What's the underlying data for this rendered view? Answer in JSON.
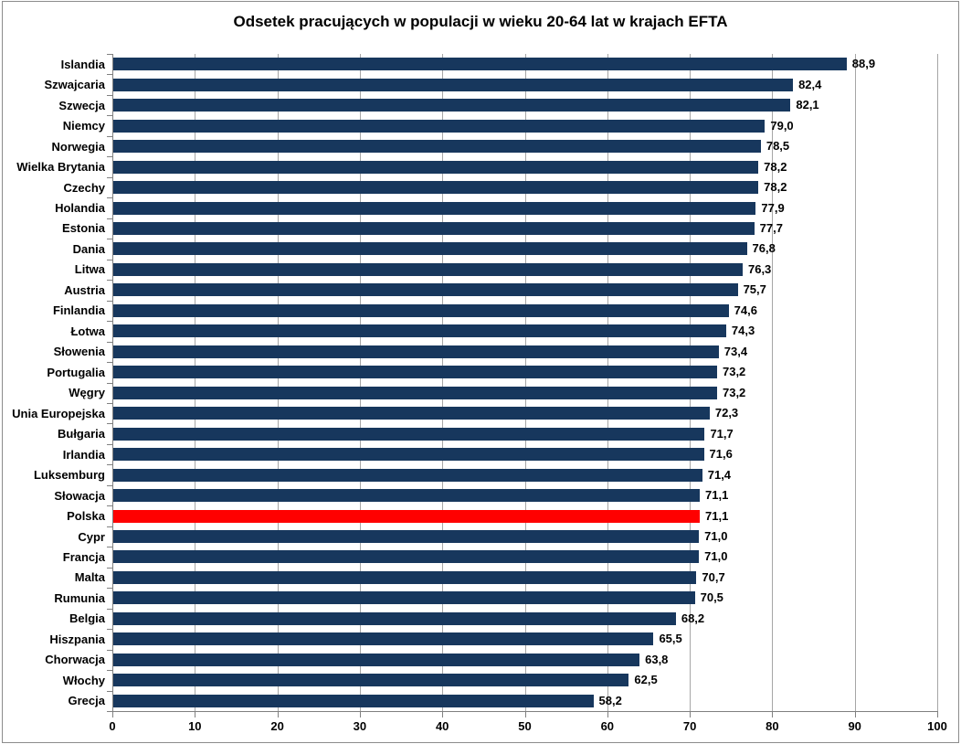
{
  "colors": {
    "bar": "#17375D",
    "highlight_bar": "#FF0000",
    "gridline": "#A6A6A6",
    "axis": "#808080",
    "text": "#000000",
    "frame_border": "#8C8C8C",
    "background": "#FFFFFF"
  },
  "chart_data": {
    "type": "bar",
    "orientation": "horizontal",
    "title": "Odsetek pracujących w populacji w wieku 20-64 lat w krajach EFTA",
    "xlabel": "",
    "ylabel": "",
    "xlim": [
      0,
      100
    ],
    "x_ticks": [
      0,
      10,
      20,
      30,
      40,
      50,
      60,
      70,
      80,
      90,
      100
    ],
    "grid": true,
    "legend": false,
    "categories": [
      "Islandia",
      "Szwajcaria",
      "Szwecja",
      "Niemcy",
      "Norwegia",
      "Wielka Brytania",
      "Czechy",
      "Holandia",
      "Estonia",
      "Dania",
      "Litwa",
      "Austria",
      "Finlandia",
      "Łotwa",
      "Słowenia",
      "Portugalia",
      "Węgry",
      "Unia Europejska",
      "Bułgaria",
      "Irlandia",
      "Luksemburg",
      "Słowacja",
      "Polska",
      "Cypr",
      "Francja",
      "Malta",
      "Rumunia",
      "Belgia",
      "Hiszpania",
      "Chorwacja",
      "Włochy",
      "Grecja"
    ],
    "values": [
      88.9,
      82.4,
      82.1,
      79.0,
      78.5,
      78.2,
      78.2,
      77.9,
      77.7,
      76.8,
      76.3,
      75.7,
      74.6,
      74.3,
      73.4,
      73.2,
      73.2,
      72.3,
      71.7,
      71.6,
      71.4,
      71.1,
      71.1,
      71.0,
      71.0,
      70.7,
      70.5,
      68.2,
      65.5,
      63.8,
      62.5,
      58.2
    ],
    "value_labels": [
      "88,9",
      "82,4",
      "82,1",
      "79,0",
      "78,5",
      "78,2",
      "78,2",
      "77,9",
      "77,7",
      "76,8",
      "76,3",
      "75,7",
      "74,6",
      "74,3",
      "73,4",
      "73,2",
      "73,2",
      "72,3",
      "71,7",
      "71,6",
      "71,4",
      "71,1",
      "71,1",
      "71,0",
      "71,0",
      "70,7",
      "70,5",
      "68,2",
      "65,5",
      "63,8",
      "62,5",
      "58,2"
    ],
    "highlight": {
      "category": "Polska",
      "color": "#FF0000"
    }
  }
}
